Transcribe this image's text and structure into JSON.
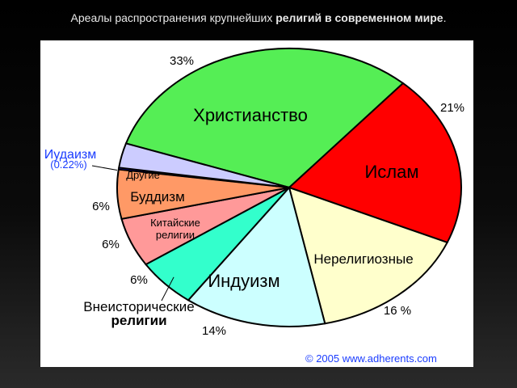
{
  "slide": {
    "title_plain": "Ареалы распространения крупнейших ",
    "title_bold": "религий в современном мире",
    "title_end": "."
  },
  "chart_data": {
    "type": "pie",
    "title": "",
    "slices": [
      {
        "label": "Христианство",
        "value": 33,
        "percent_text": "33%",
        "color": "#55ee55"
      },
      {
        "label": "Ислам",
        "value": 21,
        "percent_text": "21%",
        "color": "#ff0000"
      },
      {
        "label": "Нерелигиозные",
        "value": 16,
        "percent_text": "16 %",
        "color": "#ffffcc"
      },
      {
        "label": "Индуизм",
        "value": 14,
        "percent_text": "14%",
        "color": "#ccffff"
      },
      {
        "label": "Внеисторические религии",
        "value": 6,
        "percent_text": "6%",
        "color": "#33ffcc"
      },
      {
        "label": "Китайские религии",
        "value": 6,
        "percent_text": "6%",
        "color": "#ff9999"
      },
      {
        "label": "Буддизм",
        "value": 6,
        "percent_text": "6%",
        "color": "#ff9966"
      },
      {
        "label": "Иудаизм",
        "value": 0.22,
        "percent_text": "(0.22%)",
        "color": "#0000ff"
      },
      {
        "label": "Другие",
        "value": 3,
        "percent_text": "",
        "color": "#ccccff"
      }
    ],
    "legend": "none",
    "footer": "© 2005 www.adherents.com"
  }
}
